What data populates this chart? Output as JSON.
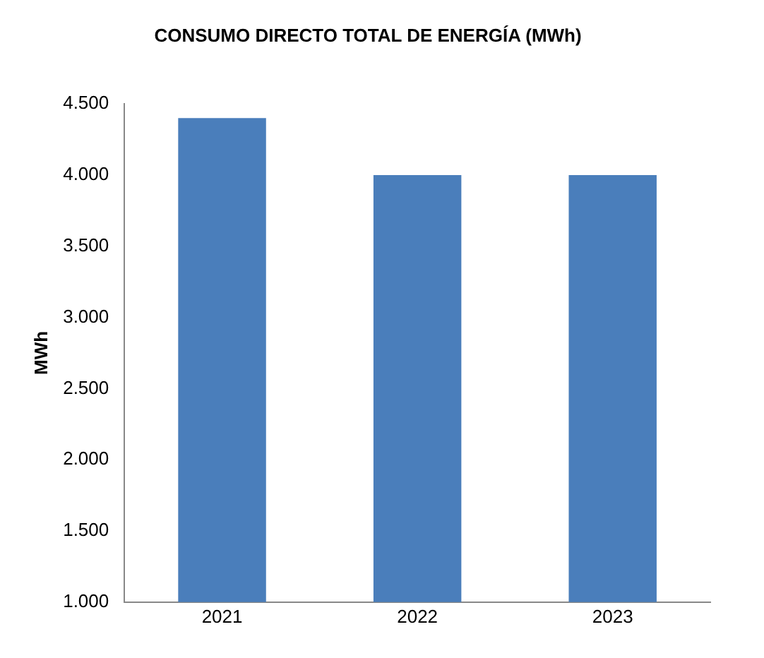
{
  "chart_data": {
    "type": "bar",
    "title": "CONSUMO DIRECTO TOTAL DE ENERGÍA (MWh)",
    "ylabel": "MWh",
    "categories": [
      "2021",
      "2022",
      "2023"
    ],
    "values": [
      4400,
      4000,
      4000
    ],
    "color": "#4a7ebb",
    "ylim": [
      1000,
      4500
    ],
    "yticks": [
      {
        "value": 1000,
        "label": "1.000"
      },
      {
        "value": 1500,
        "label": "1.500"
      },
      {
        "value": 2000,
        "label": "2.000"
      },
      {
        "value": 2500,
        "label": "2.500"
      },
      {
        "value": 3000,
        "label": "3.000"
      },
      {
        "value": 3500,
        "label": "3.500"
      },
      {
        "value": 4000,
        "label": "4.000"
      },
      {
        "value": 4500,
        "label": "4.500"
      }
    ],
    "grid": false,
    "legend": false
  }
}
